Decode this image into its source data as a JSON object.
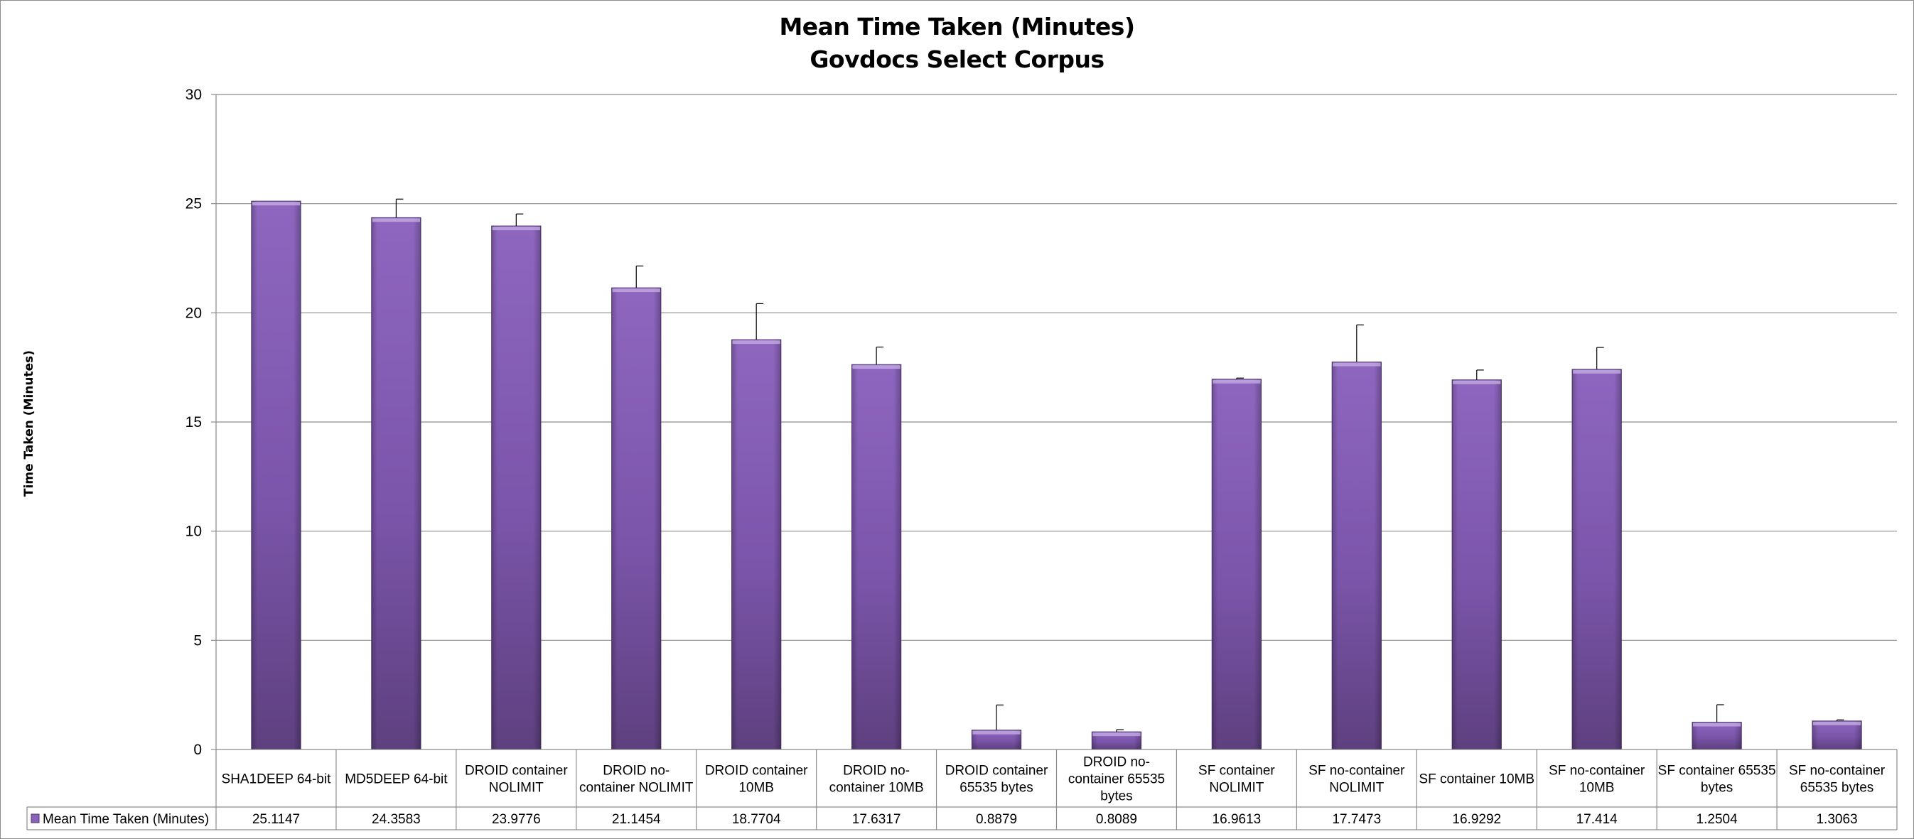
{
  "chart_data": {
    "type": "bar",
    "title": "Mean Time Taken (Minutes)",
    "subtitle": "Govdocs Select Corpus",
    "xlabel": "",
    "ylabel": "Time Taken (Minutes)",
    "ylim": [
      0,
      30
    ],
    "yticks": [
      0,
      5,
      10,
      15,
      20,
      25,
      30
    ],
    "grid": true,
    "legend_position": "data-table-left",
    "data_table": true,
    "categories": [
      [
        "SHA1DEEP 64-bit"
      ],
      [
        "MD5DEEP 64-bit"
      ],
      [
        "DROID container",
        "NOLIMIT"
      ],
      [
        "DROID no-",
        "container NOLIMIT"
      ],
      [
        "DROID container",
        "10MB"
      ],
      [
        "DROID no-",
        "container 10MB"
      ],
      [
        "DROID container",
        "65535 bytes"
      ],
      [
        "DROID no-",
        "container 65535",
        "bytes"
      ],
      [
        "SF container",
        "NOLIMIT"
      ],
      [
        "SF no-container",
        "NOLIMIT"
      ],
      [
        "SF container 10MB"
      ],
      [
        "SF no-container",
        "10MB"
      ],
      [
        "SF container 65535",
        "bytes"
      ],
      [
        "SF no-container",
        "65535 bytes"
      ]
    ],
    "series": [
      {
        "name": "Mean Time Taken (Minutes)",
        "color": "#8a63b8",
        "values": [
          25.1147,
          24.3583,
          23.9776,
          21.1454,
          18.7704,
          17.6317,
          0.8879,
          0.8089,
          16.9613,
          17.7473,
          16.9292,
          17.414,
          1.2504,
          1.3063
        ],
        "value_labels": [
          "25.1147",
          "24.3583",
          "23.9776",
          "21.1454",
          "18.7704",
          "17.6317",
          "0.8879",
          "0.8089",
          "16.9613",
          "17.7473",
          "16.9292",
          "17.414",
          "1.2504",
          "1.3063"
        ],
        "error_plus": [
          0.0,
          0.85,
          0.55,
          1.0,
          1.65,
          0.8,
          1.15,
          0.1,
          0.05,
          1.7,
          0.45,
          1.0,
          0.8,
          0.05
        ]
      }
    ]
  }
}
